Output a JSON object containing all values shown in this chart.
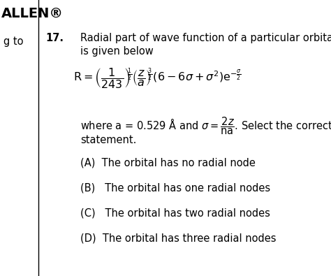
{
  "bg_color": "#ffffff",
  "header_text": "ALLEN®",
  "question_number": "17.",
  "line1": "Radial part of wave function of a particular orbital",
  "line2": "is given below",
  "statement": "statement.",
  "options": [
    "(A)  The orbital has no radial node",
    "(B)   The orbital has one radial nodes",
    "(C)   The orbital has two radial nodes",
    "(D)  The orbital has three radial nodes"
  ],
  "left_margin_text": "g to",
  "font_size_body": 10.5,
  "font_size_header": 14,
  "font_size_eq": 11.5
}
